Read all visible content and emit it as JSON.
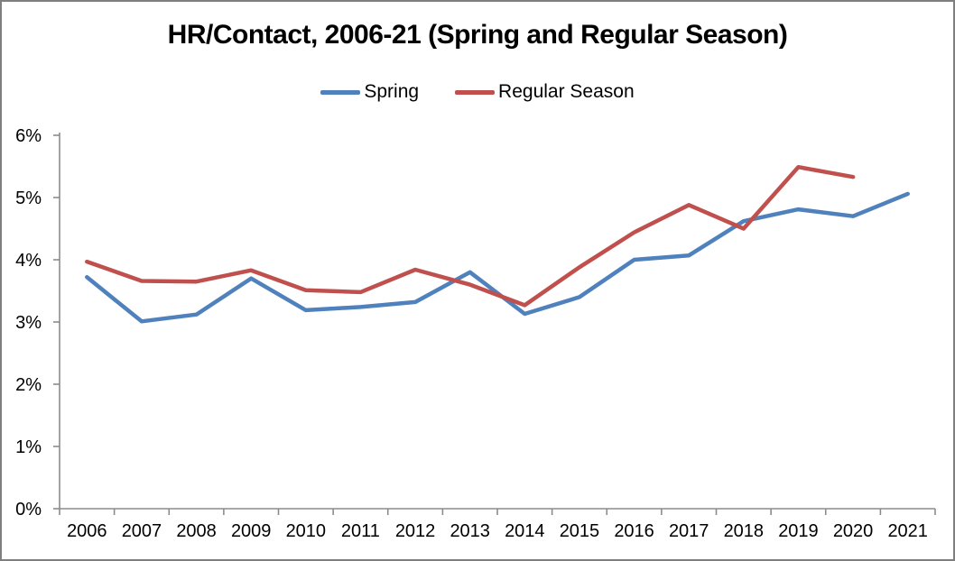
{
  "chart": {
    "title": "HR/Contact, 2006-21 (Spring and Regular Season)"
  },
  "chart_data": {
    "type": "line",
    "title": "HR/Contact, 2006-21 (Spring and Regular Season)",
    "categories": [
      "2006",
      "2007",
      "2008",
      "2009",
      "2010",
      "2011",
      "2012",
      "2013",
      "2014",
      "2015",
      "2016",
      "2017",
      "2018",
      "2019",
      "2020",
      "2021"
    ],
    "series": [
      {
        "name": "Spring",
        "color": "#4F81BD",
        "values": [
          3.72,
          3.01,
          3.12,
          3.7,
          3.19,
          3.24,
          3.32,
          3.8,
          3.13,
          3.4,
          4.0,
          4.07,
          4.62,
          4.81,
          4.7,
          5.06
        ]
      },
      {
        "name": "Regular Season",
        "color": "#C0504D",
        "values": [
          3.97,
          3.66,
          3.65,
          3.83,
          3.51,
          3.48,
          3.84,
          3.6,
          3.27,
          3.88,
          4.44,
          4.88,
          4.5,
          5.49,
          5.33,
          null
        ]
      }
    ],
    "ylabel": "",
    "xlabel": "",
    "ylim": [
      0,
      6
    ],
    "y_ticks": [
      "0%",
      "1%",
      "2%",
      "3%",
      "4%",
      "5%",
      "6%"
    ],
    "y_tick_values": [
      0,
      1,
      2,
      3,
      4,
      5,
      6
    ],
    "grid": false,
    "legend_position": "top",
    "axis_color": "#8C8C8C",
    "text_color": "#000000"
  }
}
